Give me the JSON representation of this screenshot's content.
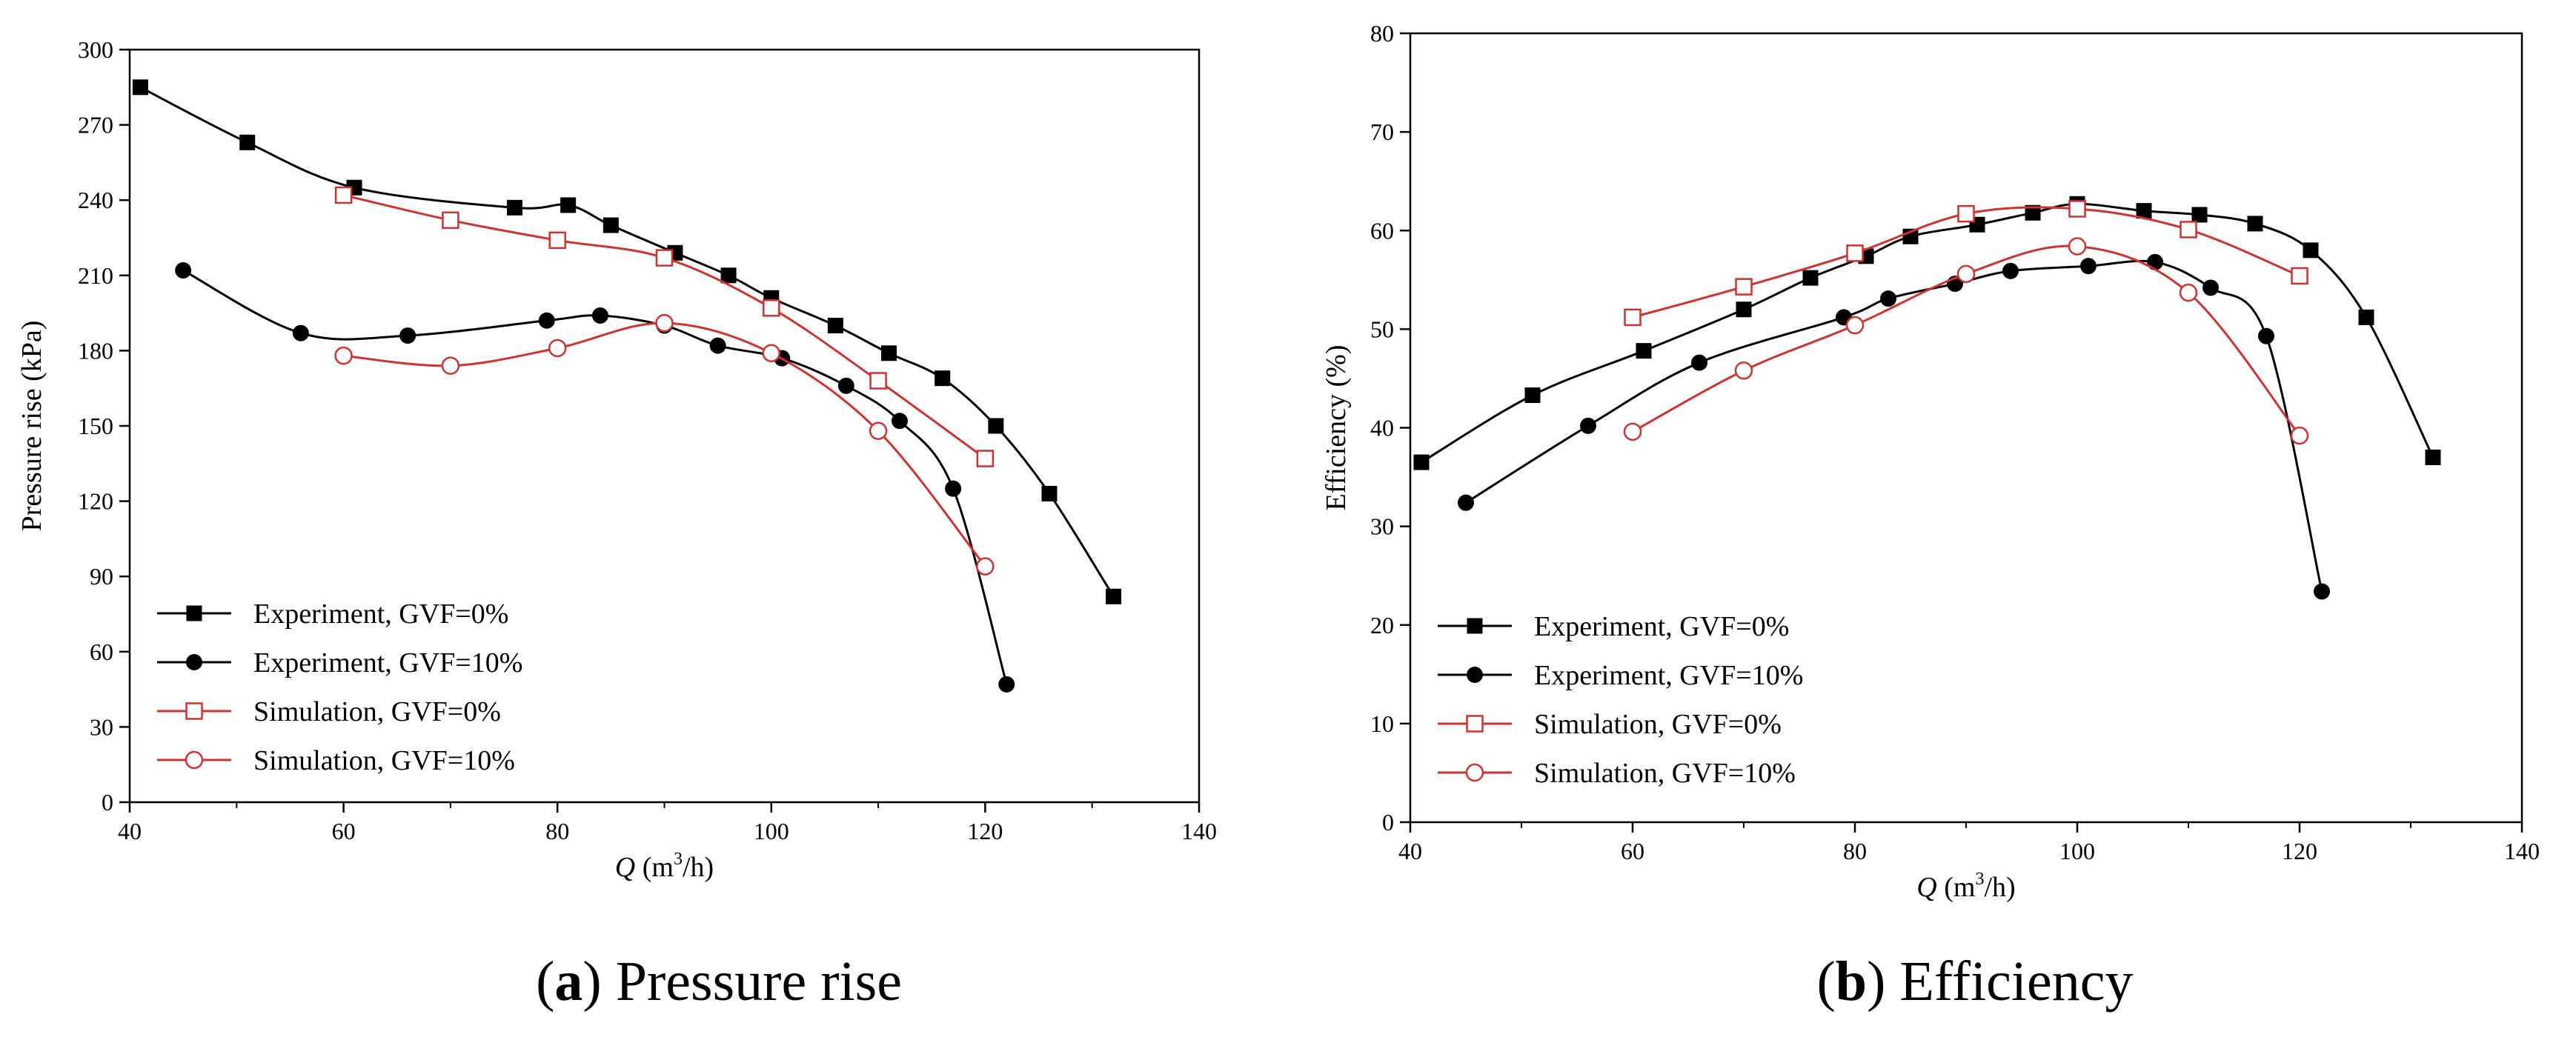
{
  "chart_data": [
    {
      "type": "line",
      "caption": {
        "letter": "a",
        "text": "Pressure rise"
      },
      "xlabel": {
        "symbol": "Q",
        "unit_pre": " (m",
        "unit_sup": "3",
        "unit_post": "/h)"
      },
      "ylabel": "Pressure rise (kPa)",
      "xlim": [
        40,
        140
      ],
      "ylim": [
        0,
        300
      ],
      "xticks": [
        "40",
        "60",
        "80",
        "100",
        "120",
        "140"
      ],
      "yticks": [
        "0",
        "30",
        "60",
        "90",
        "120",
        "150",
        "180",
        "210",
        "240",
        "270",
        "300"
      ],
      "grid": false,
      "legend_position": "bottom-left",
      "series": [
        {
          "name": "Experiment, GVF=0%",
          "color": "#000000",
          "marker": "filled-square",
          "x": [
            41,
            51,
            61,
            76,
            81,
            85,
            91,
            96,
            100,
            106,
            111,
            116,
            121,
            126,
            132
          ],
          "y": [
            285,
            263,
            245,
            237,
            238,
            230,
            219,
            210,
            201,
            190,
            179,
            169,
            150,
            123,
            82
          ]
        },
        {
          "name": "Experiment, GVF=10%",
          "color": "#000000",
          "marker": "filled-circle",
          "x": [
            45,
            56,
            66,
            79,
            84,
            90,
            95,
            101,
            107,
            112,
            117,
            122
          ],
          "y": [
            212,
            187,
            186,
            192,
            194,
            190,
            182,
            177,
            166,
            152,
            125,
            47
          ]
        },
        {
          "name": "Simulation,  GVF=0%",
          "color": "#cc3333",
          "marker": "open-square",
          "x": [
            60,
            70,
            80,
            90,
            100,
            110,
            120
          ],
          "y": [
            242,
            232,
            224,
            217,
            197,
            168,
            137
          ]
        },
        {
          "name": "Simulation,  GVF=10%",
          "color": "#cc3333",
          "marker": "open-circle",
          "x": [
            60,
            70,
            80,
            90,
            100,
            110,
            120
          ],
          "y": [
            178,
            174,
            181,
            191,
            179,
            148,
            94
          ]
        }
      ]
    },
    {
      "type": "line",
      "caption": {
        "letter": "b",
        "text": "Efficiency"
      },
      "xlabel": {
        "symbol": "Q",
        "unit_pre": " (m",
        "unit_sup": "3",
        "unit_post": "/h)"
      },
      "ylabel": "Efficiency (%)",
      "xlim": [
        40,
        140
      ],
      "ylim": [
        0,
        80
      ],
      "xticks": [
        "40",
        "60",
        "80",
        "100",
        "120",
        "140"
      ],
      "yticks": [
        "0",
        "10",
        "20",
        "30",
        "40",
        "50",
        "60",
        "70",
        "80"
      ],
      "grid": false,
      "legend_position": "bottom-left",
      "series": [
        {
          "name": "Experiment, GVF=0%",
          "color": "#000000",
          "marker": "filled-square",
          "x": [
            41,
            51,
            61,
            70,
            76,
            81,
            85,
            91,
            96,
            100,
            106,
            111,
            116,
            121,
            126,
            132
          ],
          "y": [
            36.5,
            43.3,
            47.8,
            52,
            55.2,
            57.4,
            59.4,
            60.6,
            61.8,
            62.7,
            62,
            61.6,
            60.7,
            58,
            51.2,
            37
          ]
        },
        {
          "name": "Experiment, GVF=10%",
          "color": "#000000",
          "marker": "filled-circle",
          "x": [
            45,
            56,
            66,
            79,
            83,
            89,
            94,
            101,
            107,
            112,
            117,
            122
          ],
          "y": [
            32.4,
            40.2,
            46.6,
            51.2,
            53.1,
            54.6,
            55.9,
            56.4,
            56.8,
            54.2,
            49.3,
            23.4
          ]
        },
        {
          "name": "Simulation,  GVF=0%",
          "color": "#cc3333",
          "marker": "open-square",
          "x": [
            60,
            70,
            80,
            90,
            100,
            110,
            120
          ],
          "y": [
            51.2,
            54.3,
            57.7,
            61.7,
            62.2,
            60.1,
            55.4
          ]
        },
        {
          "name": "Simulation,  GVF=10%",
          "color": "#cc3333",
          "marker": "open-circle",
          "x": [
            60,
            70,
            80,
            90,
            100,
            110,
            120
          ],
          "y": [
            39.6,
            45.8,
            50.4,
            55.6,
            58.4,
            53.7,
            39.2
          ]
        }
      ]
    }
  ]
}
